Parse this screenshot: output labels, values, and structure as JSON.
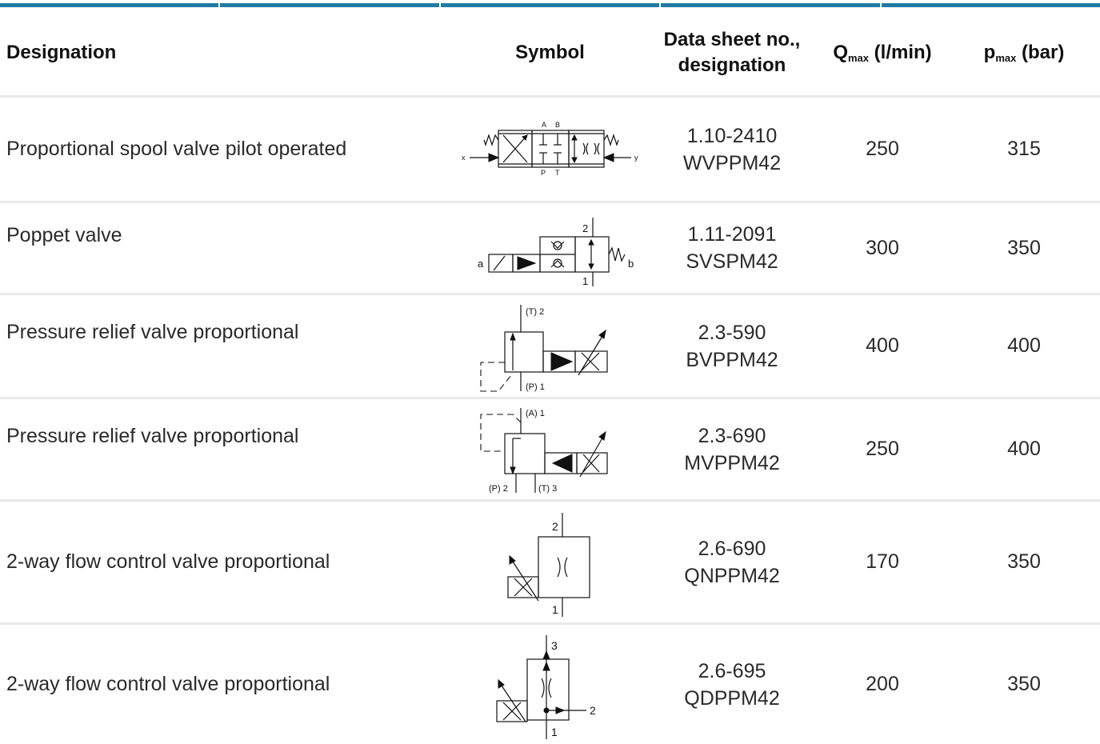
{
  "header": {
    "designation": "Designation",
    "symbol": "Symbol",
    "datasheet_line1": "Data sheet no.,",
    "datasheet_line2": "designation",
    "qmax_main": "Q",
    "qmax_sub": "max",
    "qmax_unit": " (l/min)",
    "pmax_main": "p",
    "pmax_sub": "max",
    "pmax_unit": " (bar)"
  },
  "rows": [
    {
      "designation": "Proportional spool valve pilot operated",
      "datasheet_no": "1.10-2410",
      "datasheet_name": "WVPPM42",
      "qmax": "250",
      "pmax": "315",
      "symbol_icon": "proportional-spool-valve-symbol",
      "symbol_labels": {
        "a": "A",
        "b": "B",
        "p": "P",
        "t": "T",
        "x": "x",
        "y": "y"
      }
    },
    {
      "designation": "Poppet valve",
      "datasheet_no": "1.11-2091",
      "datasheet_name": "SVSPM42",
      "qmax": "300",
      "pmax": "350",
      "symbol_icon": "poppet-valve-symbol",
      "symbol_labels": {
        "a": "a",
        "b": "b",
        "port1": "1",
        "port2": "2"
      }
    },
    {
      "designation": "Pressure relief valve proportional",
      "datasheet_no": "2.3-590",
      "datasheet_name": "BVPPM42",
      "qmax": "400",
      "pmax": "400",
      "symbol_icon": "pressure-relief-valve-symbol",
      "symbol_labels": {
        "top": "(T) 2",
        "bottom": "(P) 1"
      }
    },
    {
      "designation": "Pressure relief valve proportional",
      "datasheet_no": "2.3-690",
      "datasheet_name": "MVPPM42",
      "qmax": "250",
      "pmax": "400",
      "symbol_icon": "pressure-relief-valve-symbol",
      "symbol_labels": {
        "top": "(A) 1",
        "left": "(P) 2",
        "right": "(T) 3"
      }
    },
    {
      "designation": "2-way flow control valve proportional",
      "datasheet_no": "2.6-690",
      "datasheet_name": "QNPPM42",
      "qmax": "170",
      "pmax": "350",
      "symbol_icon": "flow-control-valve-symbol",
      "symbol_labels": {
        "top": "2",
        "bottom": "1"
      }
    },
    {
      "designation": "2-way flow control valve proportional",
      "datasheet_no": "2.6-695",
      "datasheet_name": "QDPPM42",
      "qmax": "200",
      "pmax": "350",
      "symbol_icon": "flow-control-valve-symbol",
      "symbol_labels": {
        "top": "3",
        "side": "2",
        "bottom": "1"
      }
    }
  ],
  "colors": {
    "accent": "#1f7aa4",
    "divider": "#e9e9e9",
    "text": "#2a2a2a"
  }
}
